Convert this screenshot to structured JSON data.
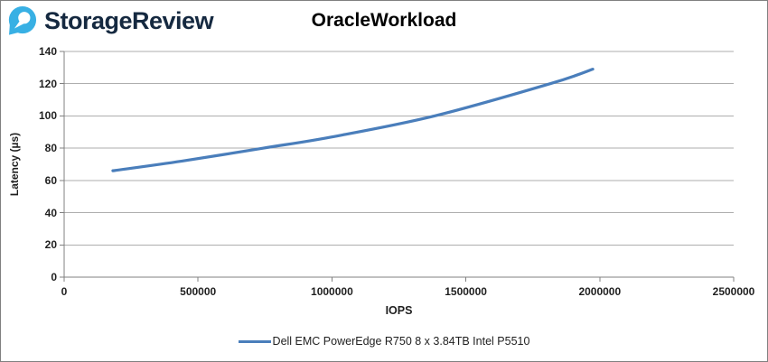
{
  "header": {
    "brand": "StorageReview",
    "brand_text_color": "#152940",
    "logo_color": "#38b0e4"
  },
  "chart_data": {
    "type": "line",
    "title": "OracleWorkload",
    "xlabel": "IOPS",
    "ylabel": "Latency (µs)",
    "xlim": [
      0,
      2500000
    ],
    "ylim": [
      0,
      140
    ],
    "x_ticks": [
      0,
      500000,
      1000000,
      1500000,
      2000000,
      2500000
    ],
    "y_ticks": [
      0,
      20,
      40,
      60,
      80,
      100,
      120,
      140
    ],
    "grid": "horizontal-only",
    "gridline_color": "#aeaeae",
    "axis_color": "#808080",
    "legend_position": "bottom-center",
    "series": [
      {
        "name": "Dell EMC PowerEdge R750 8 x 3.84TB Intel P5510",
        "color": "#4a7ebb",
        "points": [
          [
            182000,
            66
          ],
          [
            440000,
            72
          ],
          [
            742000,
            80
          ],
          [
            1000000,
            87
          ],
          [
            1383000,
            100
          ],
          [
            1815000,
            120
          ],
          [
            1974000,
            129
          ]
        ]
      }
    ]
  }
}
